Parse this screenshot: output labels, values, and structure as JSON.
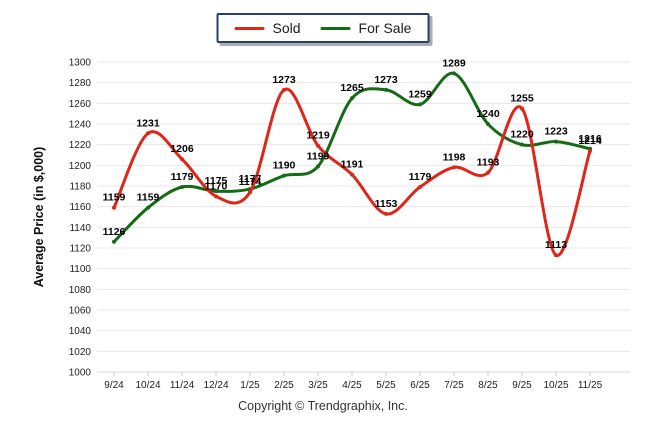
{
  "footer": {
    "copyright": "Copyright © Trendgraphix, Inc."
  },
  "chart_data": {
    "type": "line",
    "title": "",
    "xlabel": "",
    "ylabel": "Average Price (in $,000)",
    "categories": [
      "9/24",
      "10/24",
      "11/24",
      "12/24",
      "1/25",
      "2/25",
      "3/25",
      "4/25",
      "5/25",
      "6/25",
      "7/25",
      "8/25",
      "9/25",
      "10/25",
      "11/25"
    ],
    "series": [
      {
        "name": "Sold",
        "color": "#e02519",
        "values": [
          1159,
          1231,
          1206,
          1170,
          1174,
          1273,
          1219,
          1191,
          1153,
          1179,
          1198,
          1193,
          1255,
          1113,
          1214
        ]
      },
      {
        "name": "For Sale",
        "color": "#156b15",
        "values": [
          1126,
          1159,
          1179,
          1175,
          1177,
          1190,
          1199,
          1265,
          1273,
          1259,
          1289,
          1240,
          1220,
          1223,
          1216
        ]
      }
    ],
    "ylim": [
      1000,
      1300
    ],
    "yticks": [
      1000,
      1020,
      1040,
      1060,
      1080,
      1100,
      1120,
      1140,
      1160,
      1180,
      1200,
      1220,
      1240,
      1260,
      1280,
      1300
    ],
    "grid": true,
    "grid_color": "#e7e7e7",
    "axis_tick_color": "#c9c9c9",
    "axis_text_color": "#222222",
    "label_text_color": "#000000",
    "legend_position": "top-center",
    "smooth": true,
    "show_point_labels": true
  }
}
